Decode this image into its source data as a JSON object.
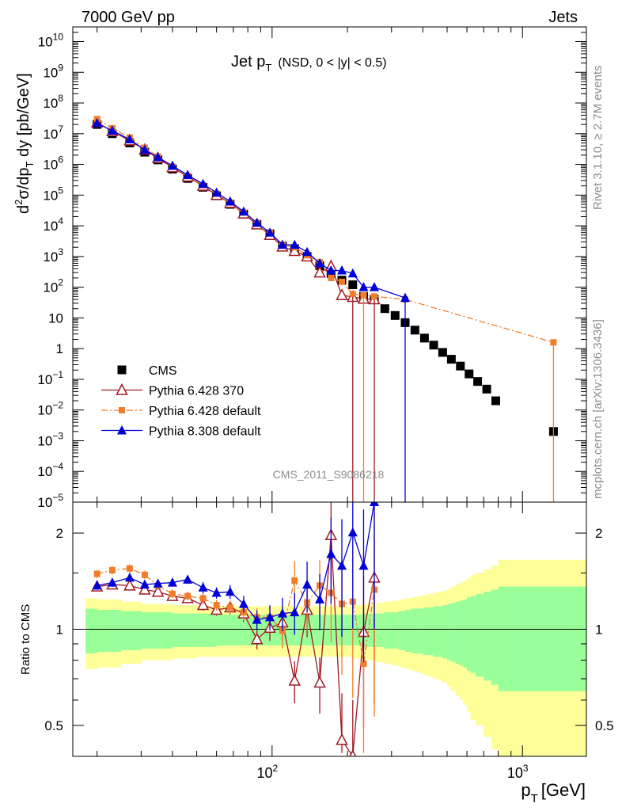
{
  "header": {
    "left": "7000 GeV pp",
    "right": "Jets"
  },
  "side": {
    "rivet": "Rivet 3.1.10, ≥ 2.7M events",
    "mcplots": "mcplots.cern.ch [arXiv:1306.3436]"
  },
  "chart_data": [
    {
      "type": "scatter",
      "panel": "main",
      "title": "Jet p_T (NSD, 0 < |y| < 0.5)",
      "title_main": "Jet p",
      "title_sub": "T",
      "title_detail": "(NSD,   0 < |y| < 0.5)",
      "ylabel": "d²σ/dp_T dy [pb/GeV]",
      "watermark": "CMS_2011_S9086218",
      "xscale": "log",
      "yscale": "log",
      "xlim": [
        16,
        1800
      ],
      "ylim": [
        1e-05,
        30000000000.0
      ],
      "yticks": [
        {
          "v": 1e-05,
          "label": "10",
          "exp": "−5"
        },
        {
          "v": 0.0001,
          "label": "10",
          "exp": "−4"
        },
        {
          "v": 0.001,
          "label": "10",
          "exp": "−3"
        },
        {
          "v": 0.01,
          "label": "10",
          "exp": "−2"
        },
        {
          "v": 0.1,
          "label": "10",
          "exp": "−1"
        },
        {
          "v": 1,
          "label": "1",
          "exp": ""
        },
        {
          "v": 10,
          "label": "10",
          "exp": ""
        },
        {
          "v": 100,
          "label": "10",
          "exp": "2"
        },
        {
          "v": 1000,
          "label": "10",
          "exp": "3"
        },
        {
          "v": 10000,
          "label": "10",
          "exp": "4"
        },
        {
          "v": 100000,
          "label": "10",
          "exp": "5"
        },
        {
          "v": 1000000,
          "label": "10",
          "exp": "6"
        },
        {
          "v": 10000000,
          "label": "10",
          "exp": "7"
        },
        {
          "v": 100000000,
          "label": "10",
          "exp": "8"
        },
        {
          "v": 1000000000,
          "label": "10",
          "exp": "9"
        },
        {
          "v": 10000000000,
          "label": "10",
          "exp": "10"
        }
      ],
      "legend": {
        "position": "bottom-left",
        "entries": [
          "CMS",
          "Pythia 6.428 370",
          "Pythia 6.428 default",
          "Pythia 8.308 default"
        ]
      },
      "series": [
        {
          "name": "CMS",
          "color": "#000000",
          "marker": "square",
          "x": [
            20,
            23,
            27,
            31,
            35,
            40,
            46,
            53,
            60,
            68,
            77,
            87,
            98,
            110,
            123,
            138,
            155,
            172,
            190,
            210,
            232,
            256,
            282,
            310,
            340,
            372,
            406,
            442,
            480,
            520,
            565,
            612,
            662,
            720,
            782,
            1330
          ],
          "y": [
            20000000,
            10000000,
            5000000,
            2500000,
            1400000,
            700000,
            350000,
            180000,
            95000,
            50000,
            24000,
            11000,
            5500,
            2200,
            1800,
            1000,
            500,
            280,
            170,
            120,
            50,
            40,
            20,
            12,
            7,
            4,
            2.2,
            1.3,
            0.75,
            0.45,
            0.27,
            0.15,
            0.085,
            0.048,
            0.02,
            0.002
          ]
        },
        {
          "name": "Pythia 6.428 370",
          "color": "#a01a22",
          "marker": "open-triangle",
          "x": [
            20,
            23,
            27,
            31,
            35,
            40,
            46,
            53,
            60,
            68,
            77,
            87,
            98,
            110,
            123,
            138,
            155,
            172,
            190,
            210,
            232,
            256
          ],
          "y": [
            23000000,
            12000000,
            6000000,
            3000000,
            1600000,
            800000,
            400000,
            200000,
            100000,
            55000,
            25000,
            11000,
            5000,
            2100,
            1500,
            1000,
            300,
            480,
            55,
            48,
            42,
            40
          ]
        },
        {
          "name": "Pythia 6.428 default",
          "color": "#f07d2a",
          "marker": "square-small",
          "x": [
            20,
            23,
            27,
            31,
            35,
            40,
            46,
            53,
            60,
            68,
            77,
            87,
            98,
            110,
            123,
            138,
            155,
            172,
            190,
            210,
            232,
            256,
            340,
            1330
          ],
          "y": [
            30000000,
            15000000,
            7500000,
            3500000,
            1800000,
            850000,
            420000,
            210000,
            110000,
            57000,
            27000,
            12500,
            6000,
            2400,
            2000,
            1100,
            650,
            200,
            150,
            60,
            55,
            50,
            40,
            1.6
          ]
        },
        {
          "name": "Pythia 8.308 default",
          "color": "#0000d8",
          "marker": "triangle",
          "x": [
            20,
            23,
            27,
            31,
            35,
            40,
            46,
            53,
            60,
            68,
            77,
            87,
            98,
            110,
            123,
            138,
            155,
            172,
            190,
            210,
            232,
            256,
            340
          ],
          "y": [
            22000000,
            12500000,
            6500000,
            3000000,
            1700000,
            900000,
            450000,
            230000,
            120000,
            62000,
            29000,
            12500,
            6000,
            2400,
            2400,
            1400,
            600,
            350,
            350,
            280,
            100,
            100,
            45
          ]
        }
      ]
    },
    {
      "type": "scatter",
      "panel": "ratio",
      "ylabel": "Ratio to CMS",
      "xlabel": "p_T [GeV]",
      "xlabel_main": "p",
      "xlabel_sub": "T",
      "xlabel_unit": "[GeV]",
      "xscale": "log",
      "yscale": "log",
      "xlim": [
        16,
        1800
      ],
      "ylim": [
        0.4,
        2.5
      ],
      "yticks": [
        {
          "v": 0.5,
          "label": "0.5"
        },
        {
          "v": 1,
          "label": "1"
        },
        {
          "v": 2,
          "label": "2"
        }
      ],
      "xticks": [
        {
          "v": 100,
          "label": "10",
          "exp": "2"
        },
        {
          "v": 1000,
          "label": "10",
          "exp": "3"
        }
      ],
      "bands": {
        "x_edges": [
          18,
          20,
          25,
          30,
          40,
          50,
          60,
          70,
          80,
          90,
          100,
          110,
          120,
          130,
          140,
          150,
          160,
          170,
          180,
          190,
          200,
          210,
          220,
          230,
          240,
          250,
          260,
          270,
          280,
          290,
          300,
          320,
          340,
          360,
          380,
          400,
          420,
          440,
          460,
          480,
          500,
          520,
          540,
          560,
          580,
          600,
          620,
          650,
          700,
          750,
          800,
          1800
        ],
        "yellow_half_width": [
          0.25,
          0.24,
          0.22,
          0.2,
          0.19,
          0.18,
          0.18,
          0.18,
          0.18,
          0.18,
          0.18,
          0.18,
          0.18,
          0.18,
          0.18,
          0.18,
          0.18,
          0.18,
          0.18,
          0.18,
          0.18,
          0.19,
          0.19,
          0.2,
          0.2,
          0.2,
          0.21,
          0.21,
          0.22,
          0.22,
          0.23,
          0.24,
          0.25,
          0.26,
          0.27,
          0.28,
          0.29,
          0.3,
          0.31,
          0.32,
          0.34,
          0.36,
          0.38,
          0.4,
          0.42,
          0.45,
          0.48,
          0.5,
          0.54,
          0.58,
          0.65
        ],
        "green_half_width": [
          0.16,
          0.15,
          0.14,
          0.13,
          0.12,
          0.12,
          0.11,
          0.11,
          0.11,
          0.11,
          0.11,
          0.11,
          0.11,
          0.11,
          0.11,
          0.11,
          0.11,
          0.11,
          0.11,
          0.11,
          0.11,
          0.11,
          0.11,
          0.12,
          0.12,
          0.12,
          0.12,
          0.12,
          0.13,
          0.13,
          0.13,
          0.14,
          0.15,
          0.16,
          0.16,
          0.17,
          0.17,
          0.18,
          0.18,
          0.19,
          0.2,
          0.21,
          0.22,
          0.23,
          0.24,
          0.26,
          0.27,
          0.29,
          0.31,
          0.33,
          0.36
        ],
        "green_color": "#99ff99",
        "yellow_color": "#ffff99"
      },
      "series": [
        {
          "name": "Pythia 6.428 370",
          "color": "#a01a22",
          "marker": "open-triangle",
          "x": [
            20,
            23,
            27,
            31,
            35,
            40,
            46,
            53,
            60,
            68,
            77,
            87,
            98,
            110,
            123,
            138,
            155,
            172,
            190,
            210,
            232,
            256
          ],
          "y": [
            1.36,
            1.38,
            1.37,
            1.33,
            1.31,
            1.27,
            1.25,
            1.19,
            1.15,
            1.17,
            1.12,
            0.93,
            1.01,
            1.05,
            0.69,
            1.15,
            0.68,
            1.97,
            0.45,
            0.4,
            0.98,
            1.45
          ],
          "err": [
            0.03,
            0.03,
            0.03,
            0.03,
            0.03,
            0.03,
            0.03,
            0.04,
            0.04,
            0.05,
            0.06,
            0.07,
            0.09,
            0.12,
            0.15,
            0.18,
            0.2,
            0.3,
            0.4,
            0.5,
            0.5,
            0.6
          ]
        },
        {
          "name": "Pythia 6.428 default",
          "color": "#f07d2a",
          "marker": "square-small",
          "x": [
            20,
            23,
            27,
            31,
            35,
            40,
            46,
            53,
            60,
            68,
            77,
            87,
            98,
            110,
            123,
            138,
            155,
            172,
            190,
            210,
            232,
            256
          ],
          "y": [
            1.49,
            1.53,
            1.55,
            1.48,
            1.37,
            1.29,
            1.27,
            1.25,
            1.19,
            1.17,
            1.13,
            1.09,
            1.09,
            0.99,
            1.42,
            1.21,
            1.37,
            1.3,
            1.2,
            1.22,
            0.78,
            1.33
          ],
          "err": [
            0.03,
            0.03,
            0.03,
            0.03,
            0.03,
            0.03,
            0.03,
            0.04,
            0.04,
            0.05,
            0.06,
            0.07,
            0.09,
            0.12,
            0.15,
            0.18,
            0.2,
            0.3,
            0.4,
            0.5,
            0.5,
            0.6
          ]
        },
        {
          "name": "Pythia 8.308 default",
          "color": "#0000d8",
          "marker": "triangle",
          "x": [
            20,
            23,
            27,
            31,
            35,
            40,
            46,
            53,
            60,
            68,
            77,
            87,
            98,
            110,
            123,
            138,
            155,
            172,
            190,
            210,
            232,
            256
          ],
          "y": [
            1.37,
            1.4,
            1.45,
            1.38,
            1.39,
            1.4,
            1.43,
            1.35,
            1.3,
            1.31,
            1.2,
            1.07,
            1.09,
            1.12,
            1.13,
            1.38,
            1.24,
            1.72,
            1.58,
            2.01,
            1.58,
            2.5
          ],
          "err": [
            0.03,
            0.03,
            0.03,
            0.03,
            0.03,
            0.03,
            0.03,
            0.04,
            0.04,
            0.05,
            0.06,
            0.07,
            0.09,
            0.12,
            0.15,
            0.18,
            0.2,
            0.3,
            0.4,
            0.5,
            0.5,
            0.6
          ]
        }
      ]
    }
  ]
}
